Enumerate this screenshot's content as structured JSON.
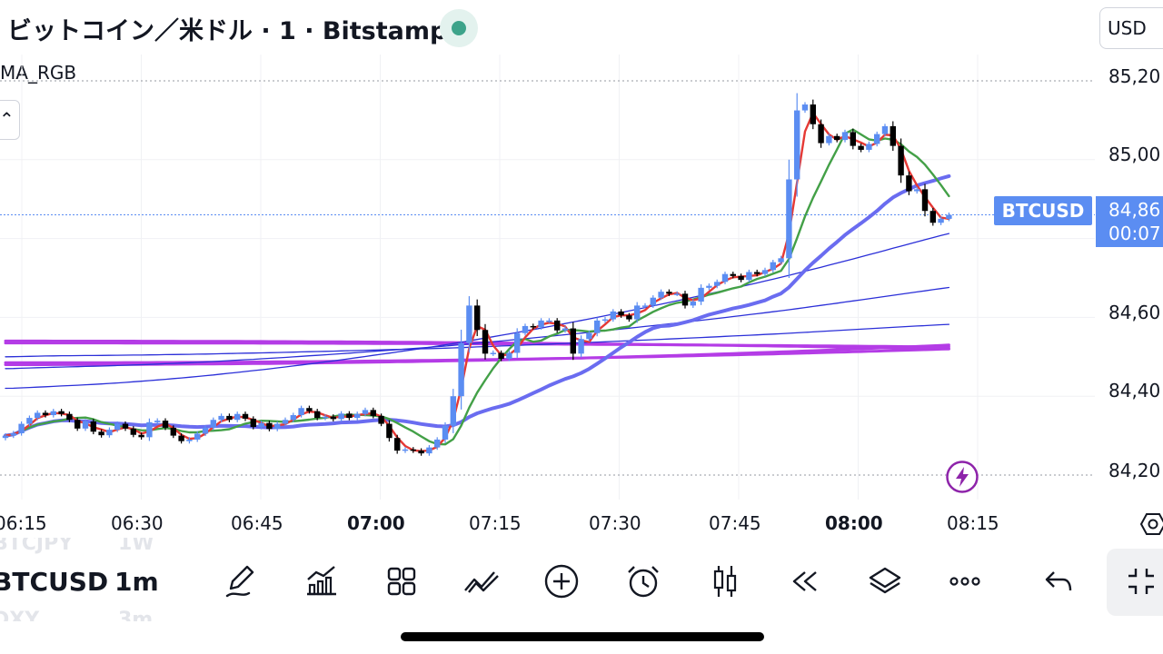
{
  "header": {
    "title": "ビットコイン／米ドル · 1 · Bitstamp",
    "currency": "USD"
  },
  "indicator": {
    "label": "MA_RGB"
  },
  "price_axis": {
    "labels": [
      "85,20",
      "85,00",
      "84,86",
      "84,60",
      "84,40",
      "84,20"
    ],
    "last_price": "84,86",
    "countdown": "00:07",
    "symbol_tag": "BTCUSD"
  },
  "time_axis": {
    "labels": [
      "06:15",
      "06:30",
      "06:45",
      "07:00",
      "07:15",
      "07:30",
      "07:45",
      "08:00",
      "08:15"
    ],
    "bold": [
      "07:00",
      "08:00"
    ]
  },
  "bottom_bar": {
    "symbol": "BTCUSD",
    "interval": "1m",
    "watchlist_prev_symbol": "BTCJPY",
    "watchlist_prev_interval": "1W",
    "watchlist_next_symbol": "DXY",
    "watchlist_next_interval": "3m",
    "tools": [
      "pen-icon",
      "chart-bars-icon",
      "grid-icon",
      "indicators-icon",
      "plus-icon",
      "alarm-icon",
      "candles-icon",
      "rewind-icon",
      "layers-icon",
      "more-icon",
      "undo-icon",
      "fullscreen-exit-icon"
    ]
  },
  "colors": {
    "accent": "#5b8df2",
    "up_candle": "#5b8df2",
    "down_candle": "#000000",
    "ma_red": "#e53935",
    "ma_green": "#43a047",
    "ma_blue_thick": "#6a6cf0",
    "ma_blue_thin": "#2b2fd8",
    "ma_purple": "#b43ce6",
    "status_green": "#3da38a"
  },
  "chart_data": {
    "type": "candlestick",
    "symbol": "BTCUSD",
    "interval": "1m",
    "ylim": [
      84150,
      85260
    ],
    "x_ticks": [
      "06:15",
      "06:30",
      "06:45",
      "07:00",
      "07:15",
      "07:30",
      "07:45",
      "08:00",
      "08:15"
    ],
    "close": [
      84300,
      84306,
      84330,
      84345,
      84358,
      84352,
      84362,
      84355,
      84340,
      84318,
      84336,
      84310,
      84301,
      84315,
      84330,
      84318,
      84302,
      84296,
      84334,
      84338,
      84320,
      84300,
      84286,
      84290,
      84305,
      84320,
      84340,
      84350,
      84340,
      84355,
      84343,
      84322,
      84332,
      84317,
      84330,
      84340,
      84352,
      84370,
      84362,
      84345,
      84348,
      84342,
      84356,
      84345,
      84355,
      84365,
      84350,
      84330,
      84294,
      84262,
      84265,
      84262,
      84255,
      84270,
      84290,
      84325,
      84400,
      84535,
      84630,
      84568,
      84508,
      84510,
      84495,
      84510,
      84560,
      84578,
      84575,
      84592,
      84592,
      84567,
      84572,
      84508,
      84545,
      84560,
      84592,
      84595,
      84615,
      84605,
      84595,
      84630,
      84630,
      84650,
      84665,
      84660,
      84660,
      84630,
      84640,
      84675,
      84680,
      84690,
      84710,
      84705,
      84695,
      84715,
      84710,
      84720,
      84740,
      84750,
      84950,
      85125,
      85140,
      85090,
      85042,
      85060,
      85050,
      85070,
      85035,
      85025,
      85040,
      85065,
      85085,
      85035,
      84960,
      84920,
      84925,
      84870,
      84840,
      84850,
      84860
    ],
    "ma_series": [
      {
        "period": "short",
        "color": "red"
      },
      {
        "period": "medium",
        "color": "green"
      },
      {
        "period": "long",
        "color": "blue"
      },
      {
        "period": "longer",
        "color": "purple"
      }
    ]
  }
}
